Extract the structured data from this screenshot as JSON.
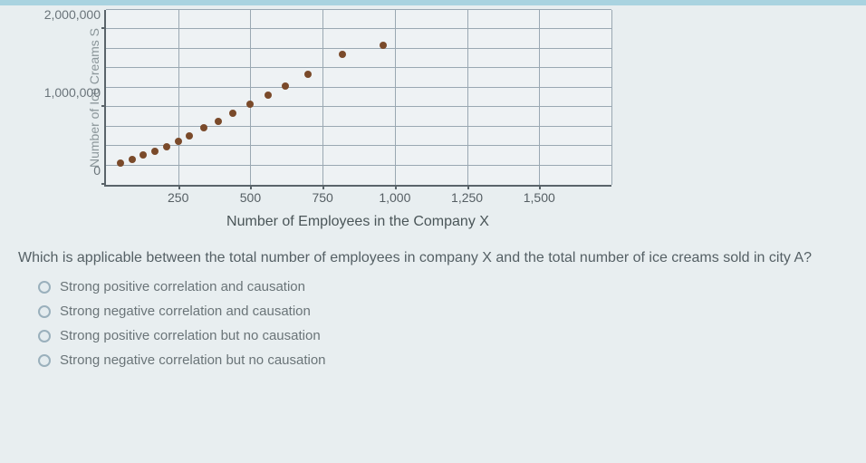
{
  "chart": {
    "type": "scatter",
    "ylabel": "Number of Ice Creams S",
    "xlabel": "Number of Employees in the Company X",
    "xlim": [
      0,
      1750
    ],
    "ylim": [
      0,
      2250000
    ],
    "xtick_step": 250,
    "ytick_step": 500000,
    "xtick_labels": [
      "250",
      "500",
      "750",
      "1,000",
      "1,250",
      "1,500"
    ],
    "ytick_labels": [
      "0",
      "1,000,000",
      "2,000,000"
    ],
    "ytick_positions": [
      0,
      1000000,
      2000000
    ],
    "grid_color": "#9aa8b2",
    "axis_color": "#5a646a",
    "background_color": "#eef2f4",
    "point_color": "#7a4a2a",
    "point_radius": 4,
    "points": [
      {
        "x": 50,
        "y": 280000
      },
      {
        "x": 90,
        "y": 330000
      },
      {
        "x": 130,
        "y": 380000
      },
      {
        "x": 170,
        "y": 430000
      },
      {
        "x": 210,
        "y": 490000
      },
      {
        "x": 250,
        "y": 560000
      },
      {
        "x": 290,
        "y": 630000
      },
      {
        "x": 340,
        "y": 730000
      },
      {
        "x": 390,
        "y": 820000
      },
      {
        "x": 440,
        "y": 920000
      },
      {
        "x": 500,
        "y": 1040000
      },
      {
        "x": 560,
        "y": 1150000
      },
      {
        "x": 620,
        "y": 1270000
      },
      {
        "x": 700,
        "y": 1420000
      },
      {
        "x": 820,
        "y": 1680000
      },
      {
        "x": 960,
        "y": 1800000
      }
    ]
  },
  "question": "Which is applicable between the total number of employees in company X and the total number of ice creams sold in city A?",
  "options": [
    "Strong positive correlation and causation",
    "Strong negative correlation and causation",
    "Strong positive correlation but no causation",
    "Strong negative correlation but no causation"
  ]
}
